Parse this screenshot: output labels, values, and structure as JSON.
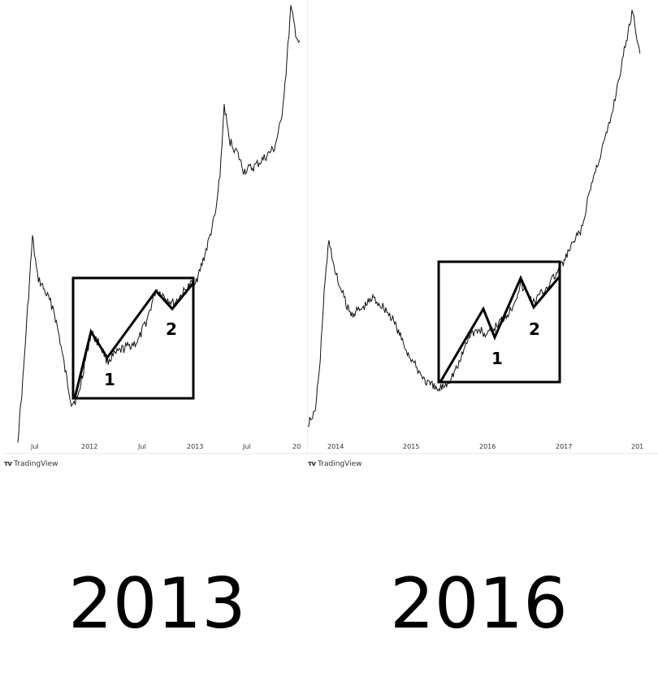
{
  "chart_data": [
    {
      "type": "line",
      "caption": "2013",
      "watermark": "TradingView",
      "x_ticks": [
        "Jul",
        "2012",
        "Jul",
        "2013",
        "Jul",
        "20"
      ],
      "wave_labels": [
        "1",
        "2"
      ],
      "grid": false,
      "colors": {
        "line": "#111111",
        "box": "#000000"
      }
    },
    {
      "type": "line",
      "caption": "2016",
      "watermark": "TradingView",
      "x_ticks": [
        "2014",
        "2015",
        "2016",
        "2017",
        "201"
      ],
      "wave_labels": [
        "1",
        "2"
      ],
      "grid": false,
      "colors": {
        "line": "#111111",
        "box": "#000000"
      }
    }
  ]
}
